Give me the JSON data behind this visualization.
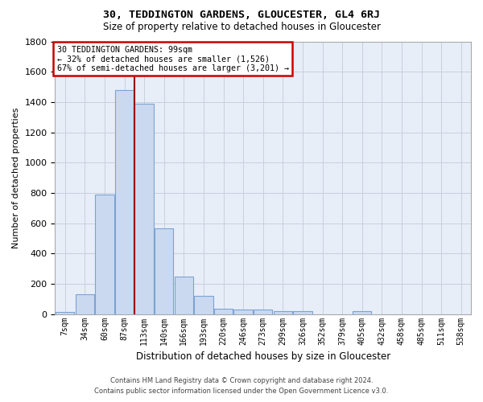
{
  "title": "30, TEDDINGTON GARDENS, GLOUCESTER, GL4 6RJ",
  "subtitle": "Size of property relative to detached houses in Gloucester",
  "xlabel": "Distribution of detached houses by size in Gloucester",
  "ylabel": "Number of detached properties",
  "bar_color": "#cad9f0",
  "bar_edge_color": "#7ba3d0",
  "grid_color": "#c8d0de",
  "background_color": "#e8eef8",
  "vline_color": "#990000",
  "categories": [
    "7sqm",
    "34sqm",
    "60sqm",
    "87sqm",
    "113sqm",
    "140sqm",
    "166sqm",
    "193sqm",
    "220sqm",
    "246sqm",
    "273sqm",
    "299sqm",
    "326sqm",
    "352sqm",
    "379sqm",
    "405sqm",
    "432sqm",
    "458sqm",
    "485sqm",
    "511sqm",
    "538sqm"
  ],
  "bar_heights": [
    15,
    130,
    790,
    1480,
    1390,
    565,
    250,
    120,
    35,
    30,
    30,
    18,
    18,
    0,
    0,
    20,
    0,
    0,
    0,
    0,
    0
  ],
  "vline_bar_index": 3,
  "ylim": [
    0,
    1800
  ],
  "yticks": [
    0,
    200,
    400,
    600,
    800,
    1000,
    1200,
    1400,
    1600,
    1800
  ],
  "annotation_text": "30 TEDDINGTON GARDENS: 99sqm\n← 32% of detached houses are smaller (1,526)\n67% of semi-detached houses are larger (3,201) →",
  "annotation_box_facecolor": "#ffffff",
  "annotation_box_edgecolor": "#cc0000",
  "footer_line1": "Contains HM Land Registry data © Crown copyright and database right 2024.",
  "footer_line2": "Contains public sector information licensed under the Open Government Licence v3.0."
}
